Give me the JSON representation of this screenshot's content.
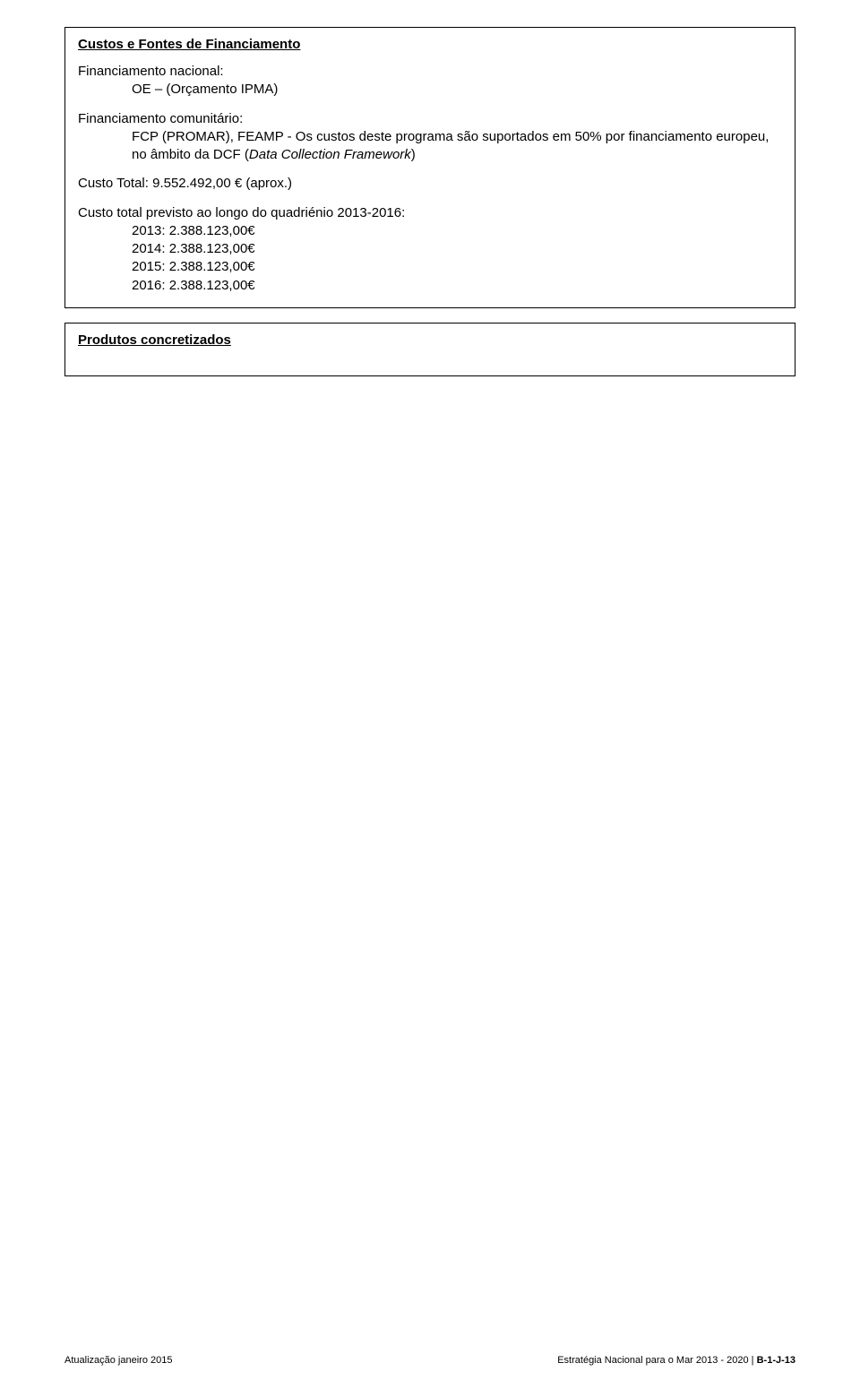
{
  "box1": {
    "heading": "Custos e Fontes de Financiamento",
    "nacional_label": "Financiamento nacional:",
    "nacional_line": "OE – (Orçamento IPMA)",
    "comunitario_label": "Financiamento comunitário:",
    "comunitario_line_a": "FCP (PROMAR), FEAMP - Os custos deste programa são suportados em 50% por financiamento europeu, no âmbito da DCF (",
    "comunitario_line_italic": "Data Collection Framework",
    "comunitario_line_b": ")",
    "custo_total": "Custo Total: 9.552.492,00 € (aprox.)",
    "previsto_label": "Custo total previsto ao longo do quadriénio 2013-2016:",
    "anos": [
      "2013: 2.388.123,00€",
      "2014: 2.388.123,00€",
      "2015: 2.388.123,00€",
      "2016: 2.388.123,00€"
    ]
  },
  "box2": {
    "heading": "Produtos concretizados"
  },
  "footer": {
    "left": "Atualização janeiro 2015",
    "right_plain": "Estratégia Nacional para o Mar 2013 - 2020 | ",
    "right_bold": "B-1-J-13"
  },
  "colors": {
    "text": "#000000",
    "background": "#ffffff",
    "border": "#000000"
  }
}
